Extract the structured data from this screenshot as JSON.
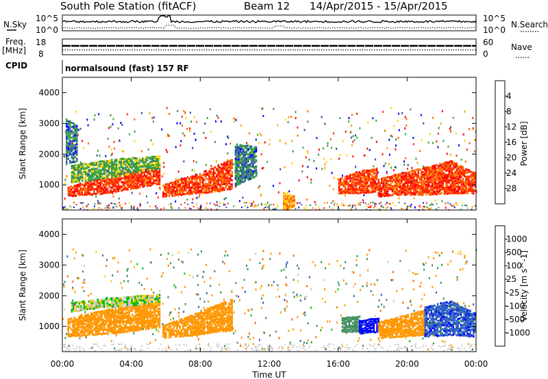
{
  "title": {
    "station": "South Pole Station (fitACF)",
    "beam": "Beam 12",
    "dates": "14/Apr/2015 - 15/Apr/2015"
  },
  "header_panels": {
    "nsky_label": "N.Sky",
    "nsky_top_tick": "10^5",
    "nsky_bottom_tick": "10^0",
    "nsearch_label": "N.Search",
    "nsearch_top_tick": "10^5",
    "nsearch_bottom_tick": "10^0",
    "freq_label": "Freq.",
    "freq_unit": "[MHz]",
    "freq_top_tick": "18",
    "freq_bottom_tick": "8",
    "nave_label": "Nave",
    "nave_top_tick": "60",
    "nave_bottom_tick": "0",
    "cpid_label": "CPID",
    "cpid_value": "normalsound (fast) 157 RF"
  },
  "colors": {
    "power": [
      "#0000ff",
      "#2b4ea8",
      "#3a8c5a",
      "#33aa33",
      "#ffd400",
      "#ff9f00",
      "#ff6600",
      "#ff2a00",
      "#ff0000"
    ],
    "velocity": [
      "#ff0000",
      "#ff6400",
      "#ff9600",
      "#ffc800",
      "#c8c8c8",
      "#00c000",
      "#3a8c5a",
      "#2b5ec0",
      "#0000ff"
    ],
    "grey_scatter": "#c8c8c8"
  },
  "chart_data": [
    {
      "type": "heatmap",
      "title": "",
      "xlabel": "",
      "ylabel": "Slant Range [km]",
      "xlim": [
        0,
        24
      ],
      "ylim": [
        180,
        4500
      ],
      "x_tick_labels": [
        "00:00",
        "04:00",
        "08:00",
        "12:00",
        "16:00",
        "20:00",
        "00:00"
      ],
      "y_ticks": [
        1000,
        2000,
        3000,
        4000
      ],
      "colorbar": {
        "label": "Power [dB]",
        "range": [
          0,
          32
        ],
        "ticks": [
          "4",
          "8",
          "12",
          "16",
          "20",
          "24",
          "28"
        ]
      },
      "bands": [
        {
          "start": 0.3,
          "end": 5.6,
          "lower": [
            650,
            700,
            750,
            850,
            950,
            1050
          ],
          "upper": [
            1000,
            1150,
            1300,
            1450,
            1550,
            1650
          ],
          "value": 26
        },
        {
          "start": 5.8,
          "end": 9.8,
          "lower": [
            650,
            700,
            750,
            800,
            900
          ],
          "upper": [
            1050,
            1250,
            1400,
            1650,
            1900
          ],
          "value": 26
        },
        {
          "start": 16.0,
          "end": 18.2,
          "lower": [
            750,
            750,
            800
          ],
          "upper": [
            1250,
            1500,
            1600
          ],
          "value": 26
        },
        {
          "start": 18.3,
          "end": 23.9,
          "lower": [
            650,
            700,
            700,
            750,
            750
          ],
          "upper": [
            1250,
            1450,
            1650,
            1850,
            1450
          ],
          "value": 26
        },
        {
          "start": 0.5,
          "end": 5.6,
          "lower": [
            1100,
            1200,
            1300,
            1450,
            1550
          ],
          "upper": [
            1700,
            1800,
            1900,
            1950,
            2000
          ],
          "value": 12
        },
        {
          "start": 0.2,
          "end": 0.8,
          "lower": [
            1700,
            1800
          ],
          "upper": [
            3200,
            3000
          ],
          "value": 7
        },
        {
          "start": 10.0,
          "end": 11.2,
          "lower": [
            1000,
            1300
          ],
          "upper": [
            2400,
            2300
          ],
          "value": 8
        },
        {
          "start": 12.8,
          "end": 13.4,
          "lower": [
            200,
            300
          ],
          "upper": [
            800,
            700
          ],
          "value": 20
        }
      ]
    },
    {
      "type": "heatmap",
      "title": "",
      "xlabel": "Time UT",
      "ylabel": "Slant Range [km]",
      "xlim": [
        0,
        24
      ],
      "ylim": [
        180,
        4500
      ],
      "x_tick_labels": [
        "00:00",
        "04:00",
        "08:00",
        "12:00",
        "16:00",
        "20:00",
        "00:00"
      ],
      "y_ticks": [
        1000,
        2000,
        3000,
        4000
      ],
      "colorbar": {
        "label": "Velocity [m s^-1]",
        "range": [
          -2000,
          2000
        ],
        "ticks": [
          "1000",
          "500",
          "100",
          "25",
          "-25",
          "-100",
          "-500",
          "-1000"
        ]
      },
      "bands": [
        {
          "start": 0.3,
          "end": 5.6,
          "lower": [
            700,
            750,
            800,
            900,
            1000
          ],
          "upper": [
            1300,
            1500,
            1650,
            1750,
            1850
          ],
          "value": -300
        },
        {
          "start": 0.5,
          "end": 5.6,
          "lower": [
            1500,
            1650,
            1700,
            1800
          ],
          "upper": [
            1850,
            1950,
            2050,
            2100
          ],
          "value": 15
        },
        {
          "start": 5.8,
          "end": 9.8,
          "lower": [
            650,
            700,
            750,
            850,
            900
          ],
          "upper": [
            1100,
            1300,
            1500,
            1750,
            1950
          ],
          "value": -300
        },
        {
          "start": 16.2,
          "end": 17.2,
          "lower": [
            850,
            850
          ],
          "upper": [
            1350,
            1400
          ],
          "value": 300
        },
        {
          "start": 17.2,
          "end": 18.3,
          "lower": [
            800,
            850
          ],
          "upper": [
            1250,
            1350
          ],
          "value": 1500
        },
        {
          "start": 18.3,
          "end": 21.0,
          "lower": [
            650,
            700,
            750
          ],
          "upper": [
            1200,
            1400,
            1600
          ],
          "value": -200
        },
        {
          "start": 21.0,
          "end": 23.9,
          "lower": [
            700,
            750,
            700
          ],
          "upper": [
            1700,
            1900,
            1500
          ],
          "value": 800
        }
      ]
    }
  ]
}
